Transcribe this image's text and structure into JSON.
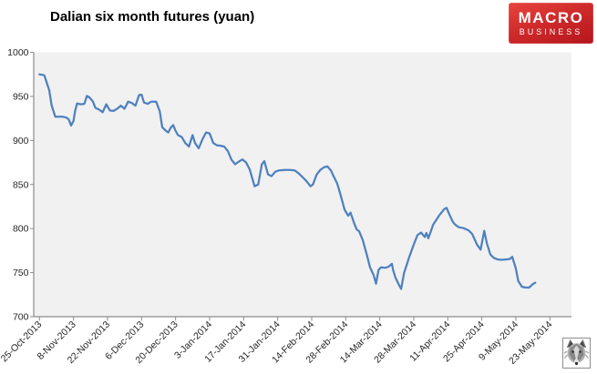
{
  "header": {
    "title": "Dalian six month futures (yuan)"
  },
  "logo": {
    "line1": "MACRO",
    "line2": "BUSINESS",
    "text_color": "#ffffff",
    "bg_color_top": "#e8453f",
    "bg_color_bottom": "#b5151c"
  },
  "watermark": {
    "icon": "wolf-face-icon"
  },
  "chart_data": {
    "type": "line",
    "title": "Dalian six month futures (yuan)",
    "xlabel": "",
    "ylabel": "",
    "grid": false,
    "legend": "none",
    "plot_bg": "#f1f1f1",
    "axis_color": "#8c8c8c",
    "label_color": "#262626",
    "line_color": "#4f81bd",
    "y_axis": {
      "min": 700,
      "max": 1000,
      "ticks": [
        1000,
        950,
        900,
        850,
        800,
        750,
        700
      ]
    },
    "x_axis": {
      "tick_labels": [
        "25-Oct-2013",
        "8-Nov-2013",
        "22-Nov-2013",
        "6-Dec-2013",
        "20-Dec-2013",
        "3-Jan-2014",
        "17-Jan-2014",
        "31-Jan-2014",
        "14-Feb-2014",
        "28-Feb-2014",
        "14-Mar-2014",
        "28-Mar-2014",
        "11-Apr-2014",
        "25-Apr-2014",
        "9-May-2014",
        "23-May-2014"
      ],
      "tick_interval_days": 14,
      "span_days": 210
    },
    "series": [
      {
        "name": "Dalian six month futures",
        "points_format": "[days_since_25_Oct_2013, yuan]",
        "points": [
          [
            0,
            975
          ],
          [
            2,
            974
          ],
          [
            4,
            957
          ],
          [
            5,
            940
          ],
          [
            6.5,
            927
          ],
          [
            8,
            927
          ],
          [
            9.5,
            927
          ],
          [
            11,
            926
          ],
          [
            12,
            924
          ],
          [
            13,
            917
          ],
          [
            14,
            922
          ],
          [
            14.7,
            934
          ],
          [
            15.5,
            942
          ],
          [
            17,
            941
          ],
          [
            18.5,
            941.5
          ],
          [
            19.5,
            950.5
          ],
          [
            20.5,
            949
          ],
          [
            22,
            944
          ],
          [
            23,
            937
          ],
          [
            24.5,
            935
          ],
          [
            26,
            932
          ],
          [
            27.5,
            941
          ],
          [
            29,
            934
          ],
          [
            30.5,
            933.5
          ],
          [
            32,
            936
          ],
          [
            33.5,
            939.5
          ],
          [
            35,
            936
          ],
          [
            36.5,
            944
          ],
          [
            38,
            942.5
          ],
          [
            39.5,
            939.5
          ],
          [
            41,
            951.5
          ],
          [
            42,
            952
          ],
          [
            43,
            943
          ],
          [
            44.5,
            941.5
          ],
          [
            46,
            944
          ],
          [
            48,
            944
          ],
          [
            49.5,
            933
          ],
          [
            50.5,
            915
          ],
          [
            52,
            911
          ],
          [
            53,
            909
          ],
          [
            54,
            914.5
          ],
          [
            55,
            917.5
          ],
          [
            56,
            911
          ],
          [
            57,
            906
          ],
          [
            58.5,
            904
          ],
          [
            60,
            897
          ],
          [
            61.5,
            893
          ],
          [
            63,
            906
          ],
          [
            64,
            897
          ],
          [
            65.5,
            891
          ],
          [
            67,
            901
          ],
          [
            68.5,
            909
          ],
          [
            70,
            908
          ],
          [
            71.5,
            897
          ],
          [
            73,
            894.5
          ],
          [
            74.5,
            894
          ],
          [
            76,
            893
          ],
          [
            77.5,
            888
          ],
          [
            79,
            878
          ],
          [
            80.5,
            873
          ],
          [
            82,
            876
          ],
          [
            83.5,
            878.5
          ],
          [
            85,
            875
          ],
          [
            86.5,
            867
          ],
          [
            88.5,
            848
          ],
          [
            90,
            850
          ],
          [
            91.5,
            873
          ],
          [
            92.5,
            876.5
          ],
          [
            94,
            861.5
          ],
          [
            95.5,
            859.5
          ],
          [
            97,
            864.5
          ],
          [
            98.5,
            866
          ],
          [
            101,
            866.5
          ],
          [
            103,
            866.5
          ],
          [
            105,
            866
          ],
          [
            106.5,
            863
          ],
          [
            108,
            859
          ],
          [
            110,
            853.5
          ],
          [
            111.5,
            848
          ],
          [
            112.5,
            850
          ],
          [
            114,
            861
          ],
          [
            115.5,
            866.5
          ],
          [
            117,
            869.5
          ],
          [
            118.5,
            870.5
          ],
          [
            120,
            865.5
          ],
          [
            121,
            859.5
          ],
          [
            122.5,
            851
          ],
          [
            123.5,
            842
          ],
          [
            124.5,
            832
          ],
          [
            125.5,
            821.5
          ],
          [
            127,
            814.5
          ],
          [
            128,
            818
          ],
          [
            129.5,
            806
          ],
          [
            130.5,
            799
          ],
          [
            131.5,
            797
          ],
          [
            133,
            787
          ],
          [
            134.5,
            772
          ],
          [
            136,
            756
          ],
          [
            137.5,
            747
          ],
          [
            138.5,
            737.5
          ],
          [
            139.5,
            753
          ],
          [
            140.5,
            756
          ],
          [
            142,
            755.5
          ],
          [
            143,
            756
          ],
          [
            144,
            757.5
          ],
          [
            145,
            760
          ],
          [
            145.5,
            753
          ],
          [
            146.5,
            744
          ],
          [
            148,
            735.5
          ],
          [
            148.8,
            731.5
          ],
          [
            150,
            749.5
          ],
          [
            152,
            766.5
          ],
          [
            154,
            782
          ],
          [
            155.5,
            792.5
          ],
          [
            157,
            795.5
          ],
          [
            158.5,
            790.5
          ],
          [
            159.2,
            795
          ],
          [
            160,
            789
          ],
          [
            162,
            804.5
          ],
          [
            164.5,
            815
          ],
          [
            166.5,
            822
          ],
          [
            167.5,
            823.5
          ],
          [
            168.5,
            817
          ],
          [
            170,
            808
          ],
          [
            171,
            804.5
          ],
          [
            172.5,
            801.5
          ],
          [
            174.5,
            800.5
          ],
          [
            176.5,
            798
          ],
          [
            178,
            794
          ],
          [
            180,
            782
          ],
          [
            181.5,
            776
          ],
          [
            183,
            797.5
          ],
          [
            184,
            784
          ],
          [
            185.5,
            770.5
          ],
          [
            187,
            766.5
          ],
          [
            188.5,
            765
          ],
          [
            190,
            764.5
          ],
          [
            192,
            765
          ],
          [
            193.5,
            765.5
          ],
          [
            194.5,
            768
          ],
          [
            196,
            754.5
          ],
          [
            197,
            740.5
          ],
          [
            198.5,
            734
          ],
          [
            200,
            733
          ],
          [
            201.5,
            733
          ],
          [
            203,
            737
          ],
          [
            204,
            738.5
          ]
        ]
      }
    ]
  }
}
